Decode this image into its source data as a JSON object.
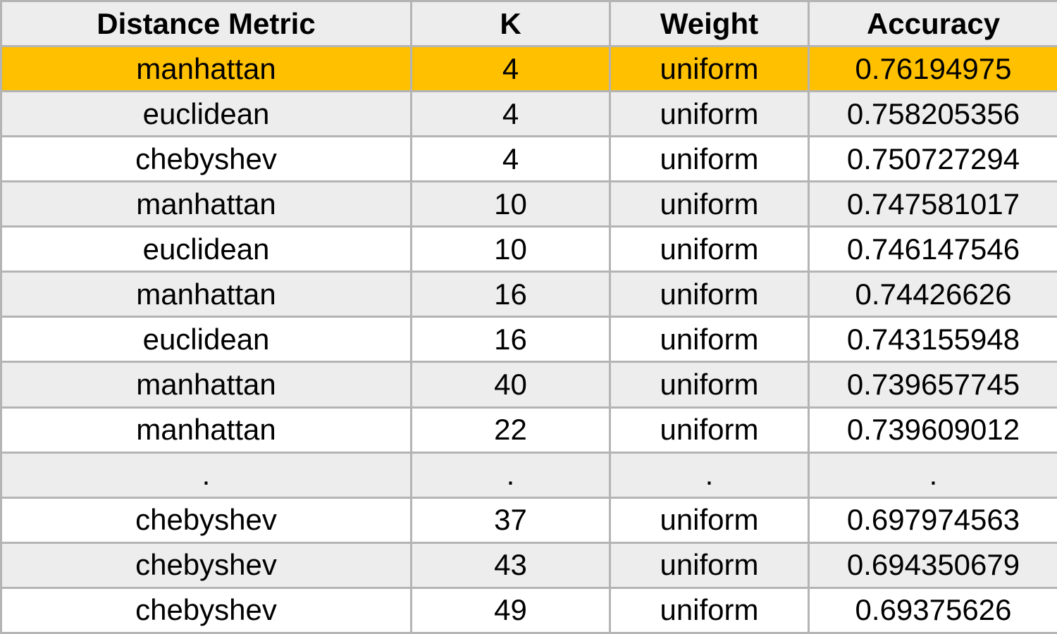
{
  "table": {
    "headers": [
      "Distance Metric",
      "K",
      "Weight",
      "Accuracy"
    ],
    "highlight_color": "#ffc000",
    "highlighted_row_index": 0,
    "rows": [
      [
        "manhattan",
        "4",
        "uniform",
        "0.76194975"
      ],
      [
        "euclidean",
        "4",
        "uniform",
        "0.758205356"
      ],
      [
        "chebyshev",
        "4",
        "uniform",
        "0.750727294"
      ],
      [
        "manhattan",
        "10",
        "uniform",
        "0.747581017"
      ],
      [
        "euclidean",
        "10",
        "uniform",
        "0.746147546"
      ],
      [
        "manhattan",
        "16",
        "uniform",
        "0.74426626"
      ],
      [
        "euclidean",
        "16",
        "uniform",
        "0.743155948"
      ],
      [
        "manhattan",
        "40",
        "uniform",
        "0.739657745"
      ],
      [
        "manhattan",
        "22",
        "uniform",
        "0.739609012"
      ],
      [
        ".",
        ".",
        ".",
        "."
      ],
      [
        "chebyshev",
        "37",
        "uniform",
        "0.697974563"
      ],
      [
        "chebyshev",
        "43",
        "uniform",
        "0.694350679"
      ],
      [
        "chebyshev",
        "49",
        "uniform",
        "0.69375626"
      ]
    ]
  }
}
